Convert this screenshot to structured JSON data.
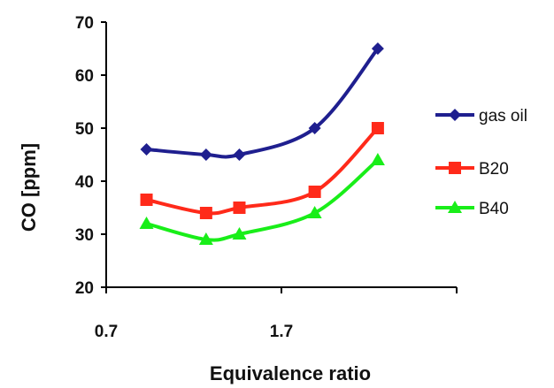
{
  "chart_data": {
    "type": "line",
    "xlabel": "Equivalence ratio",
    "ylabel": "CO [ppm]",
    "xlim": [
      0.7,
      2.7
    ],
    "ylim": [
      20,
      70
    ],
    "xticks": [
      "0.7",
      "1.7"
    ],
    "xtick_values": [
      0.7,
      1.7
    ],
    "yticks": [
      "20",
      "30",
      "40",
      "50",
      "60",
      "70"
    ],
    "ytick_values": [
      20,
      30,
      40,
      50,
      60,
      70
    ],
    "grid": false,
    "legend_position": "right",
    "series": [
      {
        "name": "gas oil",
        "color": "#1f1f8f",
        "marker": "diamond",
        "x": [
          0.93,
          1.27,
          1.46,
          1.89,
          2.25
        ],
        "y": [
          46,
          45,
          45,
          50,
          65
        ]
      },
      {
        "name": "B20",
        "color": "#ff2a1a",
        "marker": "square",
        "x": [
          0.93,
          1.27,
          1.46,
          1.89,
          2.25
        ],
        "y": [
          36.5,
          34,
          35,
          38,
          50
        ]
      },
      {
        "name": "B40",
        "color": "#19ee19",
        "marker": "triangle",
        "x": [
          0.93,
          1.27,
          1.46,
          1.89,
          2.25
        ],
        "y": [
          32,
          29,
          30,
          34,
          44
        ]
      }
    ]
  }
}
